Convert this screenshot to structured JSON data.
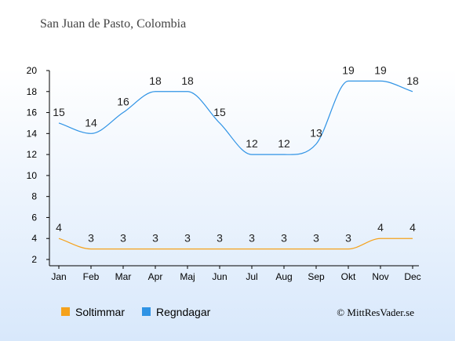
{
  "chart_data": {
    "type": "line",
    "title": "San Juan de Pasto, Colombia",
    "categories": [
      "Jan",
      "Feb",
      "Mar",
      "Apr",
      "Maj",
      "Jun",
      "Jul",
      "Aug",
      "Sep",
      "Okt",
      "Nov",
      "Dec"
    ],
    "series": [
      {
        "name": "Soltimmar",
        "color": "#f5a21c",
        "values": [
          4,
          3,
          3,
          3,
          3,
          3,
          3,
          3,
          3,
          3,
          4,
          4
        ]
      },
      {
        "name": "Regndagar",
        "color": "#2f93e5",
        "values": [
          15,
          14,
          16,
          18,
          18,
          15,
          12,
          12,
          13,
          19,
          19,
          18
        ]
      }
    ],
    "yticks": [
      2,
      4,
      6,
      8,
      10,
      12,
      14,
      16,
      18,
      20
    ],
    "ylim": [
      2,
      20
    ],
    "grid": false,
    "legend": "bottom-left",
    "credit": "© MittResVader.se"
  }
}
